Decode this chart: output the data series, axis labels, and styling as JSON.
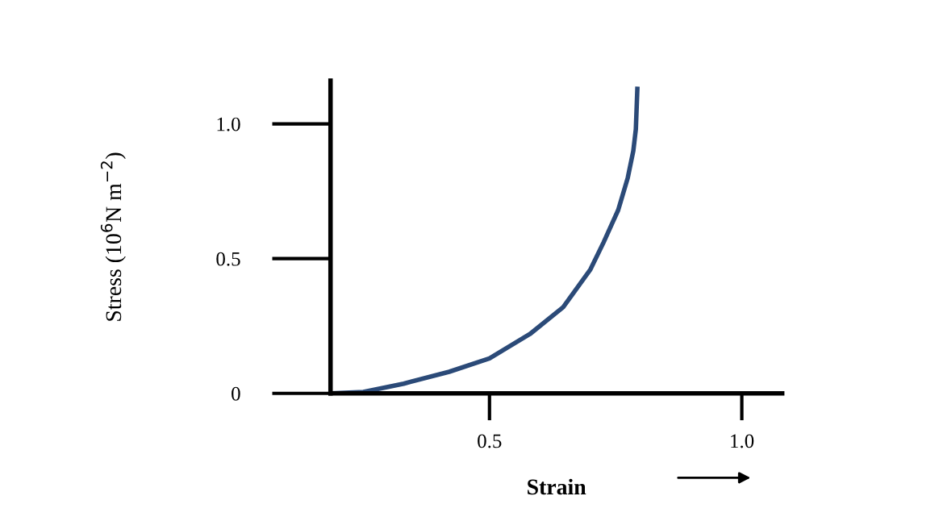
{
  "chart_data": {
    "type": "line",
    "xlabel": "Strain",
    "ylabel": "Stress (10$^{6}$N m$^{−2}$)",
    "x": [
      0.185,
      0.25,
      0.33,
      0.42,
      0.5,
      0.58,
      0.646,
      0.7,
      0.726,
      0.755,
      0.774,
      0.785,
      0.79,
      0.793
    ],
    "series": [
      {
        "color": "#2b4a78",
        "values": [
          0,
          0.005,
          0.036,
          0.08,
          0.13,
          0.22,
          0.32,
          0.46,
          0.56,
          0.68,
          0.8,
          0.9,
          0.98,
          1.13
        ]
      }
    ],
    "xlim": [
      0.185,
      1.08
    ],
    "ylim": [
      0,
      1.16
    ],
    "xticks": [
      0.5,
      {
        "value": 1.0,
        "label": "1.0"
      }
    ],
    "yticks": [
      0,
      0.5,
      {
        "value": 1.0,
        "label": "1.0"
      }
    ],
    "grid": false,
    "legend": false,
    "marker": "none",
    "line_style": "solid"
  }
}
